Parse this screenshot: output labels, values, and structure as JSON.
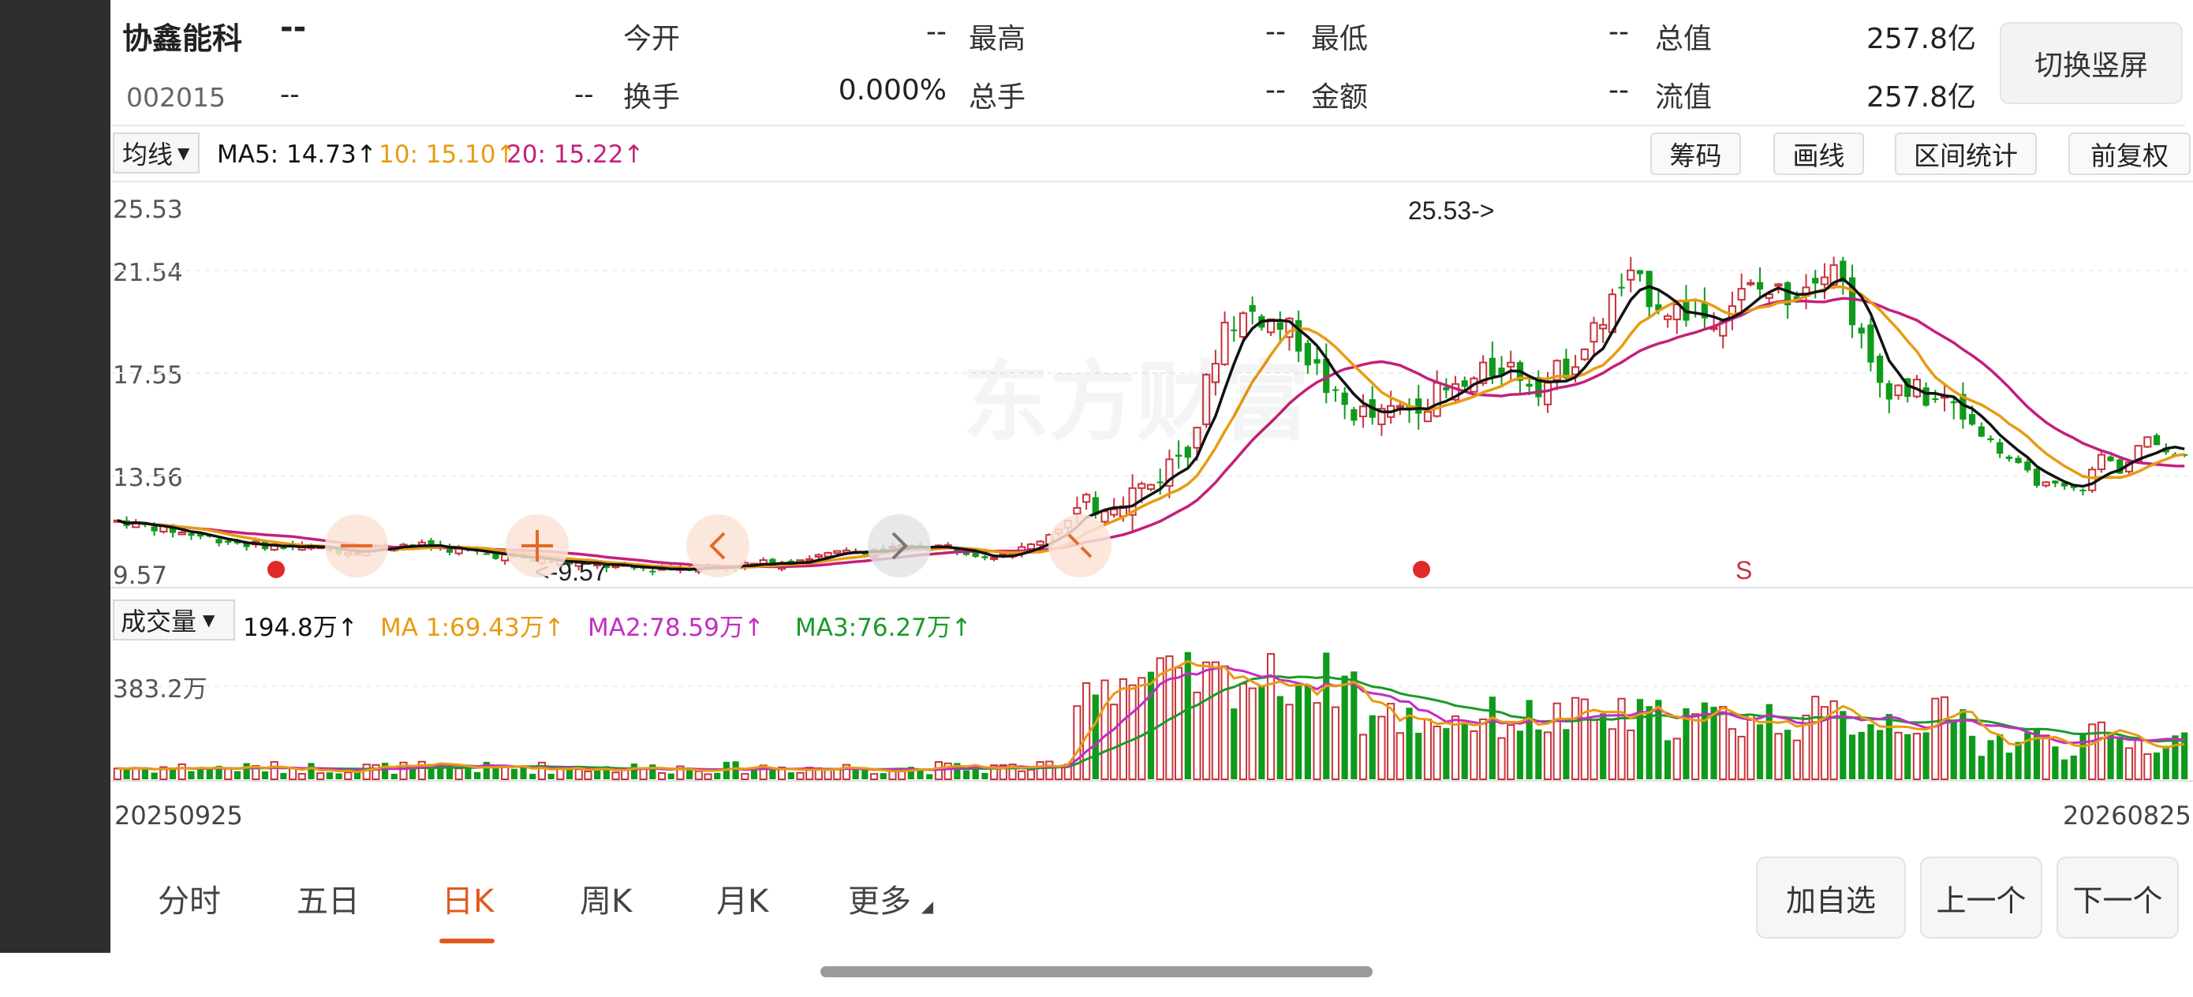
{
  "header": {
    "name": "协鑫能科",
    "name_change": "--",
    "code": "002015",
    "price": "--",
    "change": "--",
    "stats": [
      {
        "label": "今开",
        "value": "--"
      },
      {
        "label": "最高",
        "value": "--"
      },
      {
        "label": "最低",
        "value": "--"
      },
      {
        "label": "总值",
        "value": "257.8亿"
      },
      {
        "label": "换手",
        "value": "0.000%"
      },
      {
        "label": "总手",
        "value": "--"
      },
      {
        "label": "金额",
        "value": "--"
      },
      {
        "label": "流值",
        "value": "257.8亿"
      }
    ],
    "switch_label": "切换竖屏"
  },
  "toolbar": {
    "ma_select": "均线",
    "ma5": "MA5: 14.73↑",
    "ma10": "10: 15.10↑",
    "ma20": "20: 15.22↑",
    "buttons": [
      "筹码",
      "画线",
      "区间统计",
      "前复权"
    ]
  },
  "colors": {
    "up": "#c8343c",
    "down": "#0f9a1c",
    "ma5": "#111111",
    "ma10": "#e89b12",
    "ma20": "#c4207a",
    "accent": "#e05a1c",
    "vol_ma3": "#1a9a2a",
    "vol_ma2": "#c42dc4"
  },
  "chart_data": [
    {
      "type": "candlestick",
      "y_ticks": [
        "25.53",
        "21.54",
        "17.55",
        "13.56",
        "9.57"
      ],
      "ylim": [
        9.57,
        25.53
      ],
      "annotations": {
        "high": "25.53->",
        "low": "<-9.57",
        "signal": "S"
      },
      "x_start": "20250925",
      "x_end": "20260825",
      "ma_path": {
        "ma5": [
          [
            0,
            11.8
          ],
          [
            0.05,
            11.0
          ],
          [
            0.1,
            10.6
          ],
          [
            0.15,
            10.9
          ],
          [
            0.2,
            10.2
          ],
          [
            0.25,
            9.9
          ],
          [
            0.3,
            9.7
          ],
          [
            0.35,
            10.0
          ],
          [
            0.4,
            10.3
          ],
          [
            0.45,
            10.9
          ],
          [
            0.4,
            10.3
          ],
          [
            0.4,
            10.3
          ]
        ],
        "ma10": [
          [
            0,
            11.5
          ]
        ],
        "ma20": [
          [
            0,
            11.3
          ]
        ]
      }
    },
    {
      "type": "bar",
      "label": "成交量",
      "value": "194.8万↑",
      "ma1": "MA 1:69.43万↑",
      "ma2": "MA2:78.59万↑",
      "ma3": "MA3:76.27万↑",
      "y_tick": "383.2万"
    }
  ],
  "tabs": [
    "分时",
    "五日",
    "日K",
    "周K",
    "月K",
    "更多"
  ],
  "active_tab": "日K",
  "actions": [
    "加自选",
    "上一个",
    "下一个"
  ],
  "watermark": "东方财富"
}
